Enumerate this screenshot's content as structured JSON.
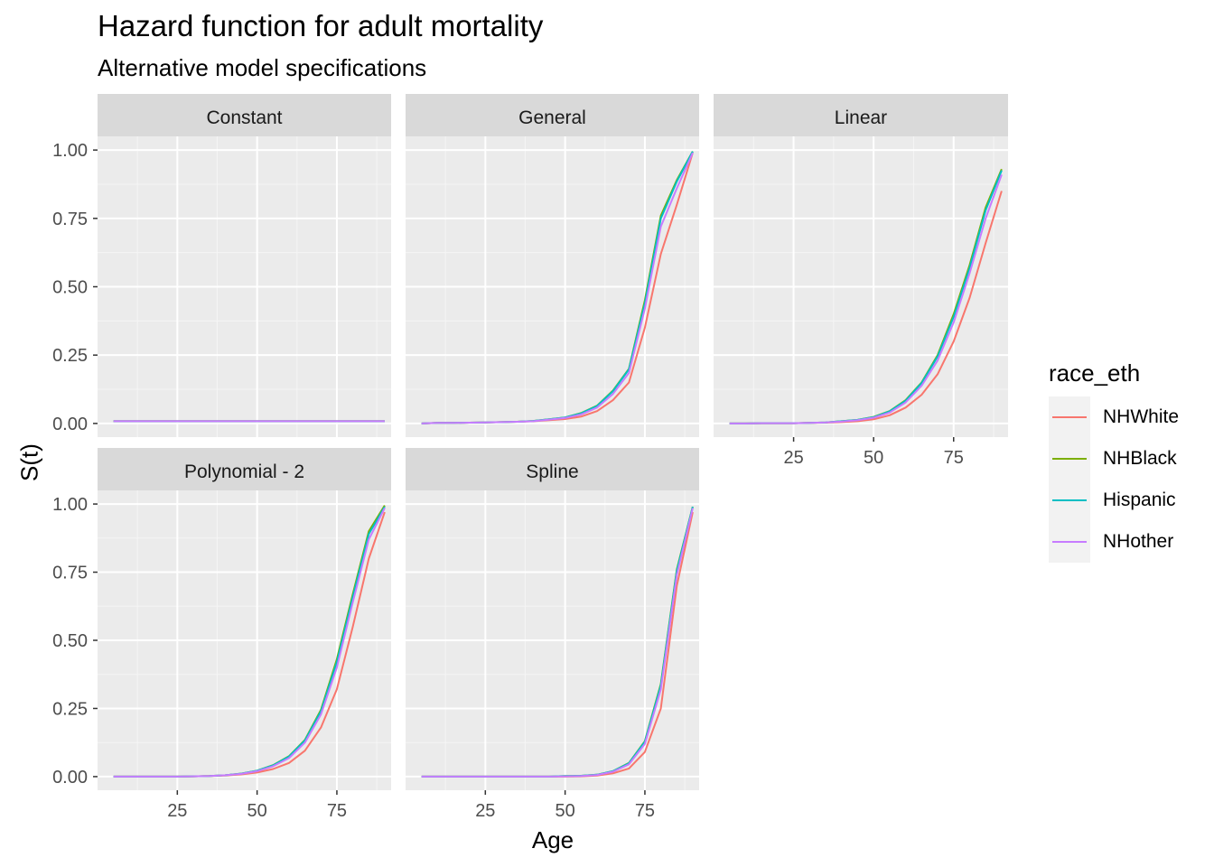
{
  "chart_data": {
    "type": "line",
    "title": "Hazard function for adult mortality",
    "subtitle": "Alternative model specifications",
    "xlabel": "Age",
    "ylabel": "S(t)",
    "xlim": [
      0,
      92
    ],
    "ylim": [
      -0.05,
      1.05
    ],
    "x_ticks": [
      25,
      50,
      75
    ],
    "x_tick_labels": [
      "25",
      "50",
      "75"
    ],
    "y_ticks": [
      0,
      0.25,
      0.5,
      0.75,
      1.0
    ],
    "y_tick_labels": [
      "0.00",
      "0.25",
      "0.50",
      "0.75",
      "1.00"
    ],
    "legend": {
      "title": "race_eth",
      "placement": "right",
      "entries": [
        {
          "name": "NHWhite",
          "color": "#F8766D"
        },
        {
          "name": "NHBlack",
          "color": "#7CAE00"
        },
        {
          "name": "Hispanic",
          "color": "#00BFC4"
        },
        {
          "name": "NHother",
          "color": "#C77CFF"
        }
      ]
    },
    "x": [
      5,
      10,
      15,
      20,
      25,
      30,
      35,
      40,
      45,
      50,
      55,
      60,
      65,
      70,
      75,
      80,
      85,
      90
    ],
    "panels": [
      {
        "name": "Constant",
        "series": [
          {
            "name": "NHWhite",
            "values": [
              0.008,
              0.008,
              0.008,
              0.008,
              0.008,
              0.008,
              0.008,
              0.008,
              0.008,
              0.008,
              0.008,
              0.008,
              0.008,
              0.008,
              0.008,
              0.008,
              0.008,
              0.008
            ]
          },
          {
            "name": "NHBlack",
            "values": [
              0.008,
              0.008,
              0.008,
              0.008,
              0.008,
              0.008,
              0.008,
              0.008,
              0.008,
              0.008,
              0.008,
              0.008,
              0.008,
              0.008,
              0.008,
              0.008,
              0.008,
              0.008
            ]
          },
          {
            "name": "Hispanic",
            "values": [
              0.008,
              0.008,
              0.008,
              0.008,
              0.008,
              0.008,
              0.008,
              0.008,
              0.008,
              0.008,
              0.008,
              0.008,
              0.008,
              0.008,
              0.008,
              0.008,
              0.008,
              0.008
            ]
          },
          {
            "name": "NHother",
            "values": [
              0.008,
              0.008,
              0.008,
              0.008,
              0.008,
              0.008,
              0.008,
              0.008,
              0.008,
              0.008,
              0.008,
              0.008,
              0.008,
              0.008,
              0.008,
              0.008,
              0.008,
              0.008
            ]
          }
        ]
      },
      {
        "name": "General",
        "series": [
          {
            "name": "NHWhite",
            "values": [
              0.0,
              0.002,
              0.002,
              0.003,
              0.004,
              0.005,
              0.006,
              0.008,
              0.012,
              0.016,
              0.025,
              0.045,
              0.085,
              0.15,
              0.35,
              0.62,
              0.8,
              0.99
            ]
          },
          {
            "name": "NHBlack",
            "values": [
              0.0,
              0.002,
              0.002,
              0.003,
              0.004,
              0.005,
              0.006,
              0.009,
              0.015,
              0.022,
              0.038,
              0.065,
              0.12,
              0.2,
              0.45,
              0.76,
              0.89,
              0.995
            ]
          },
          {
            "name": "Hispanic",
            "values": [
              0.0,
              0.002,
              0.002,
              0.003,
              0.004,
              0.005,
              0.006,
              0.009,
              0.015,
              0.022,
              0.037,
              0.064,
              0.118,
              0.198,
              0.44,
              0.75,
              0.885,
              0.995
            ]
          },
          {
            "name": "NHother",
            "values": [
              0.0,
              0.002,
              0.002,
              0.003,
              0.004,
              0.005,
              0.006,
              0.008,
              0.014,
              0.02,
              0.033,
              0.058,
              0.108,
              0.185,
              0.42,
              0.72,
              0.86,
              0.99
            ]
          }
        ]
      },
      {
        "name": "Linear",
        "series": [
          {
            "name": "NHWhite",
            "values": [
              0.0,
              0.0,
              0.001,
              0.001,
              0.001,
              0.002,
              0.003,
              0.005,
              0.008,
              0.015,
              0.03,
              0.058,
              0.105,
              0.18,
              0.3,
              0.46,
              0.66,
              0.85
            ]
          },
          {
            "name": "NHBlack",
            "values": [
              0.0,
              0.0,
              0.001,
              0.001,
              0.001,
              0.002,
              0.004,
              0.008,
              0.013,
              0.024,
              0.045,
              0.085,
              0.15,
              0.25,
              0.4,
              0.58,
              0.79,
              0.93
            ]
          },
          {
            "name": "Hispanic",
            "values": [
              0.0,
              0.0,
              0.001,
              0.001,
              0.001,
              0.002,
              0.004,
              0.008,
              0.013,
              0.023,
              0.044,
              0.083,
              0.148,
              0.245,
              0.39,
              0.57,
              0.78,
              0.925
            ]
          },
          {
            "name": "NHother",
            "values": [
              0.0,
              0.0,
              0.001,
              0.001,
              0.001,
              0.002,
              0.004,
              0.007,
              0.012,
              0.021,
              0.04,
              0.077,
              0.138,
              0.23,
              0.37,
              0.55,
              0.75,
              0.91
            ]
          }
        ]
      },
      {
        "name": "Polynomial - 2",
        "series": [
          {
            "name": "NHWhite",
            "values": [
              0.0,
              0.0,
              0.0,
              0.0,
              0.0,
              0.001,
              0.002,
              0.004,
              0.008,
              0.015,
              0.028,
              0.05,
              0.095,
              0.18,
              0.32,
              0.55,
              0.8,
              0.97
            ]
          },
          {
            "name": "NHBlack",
            "values": [
              0.0,
              0.0,
              0.0,
              0.0,
              0.0,
              0.001,
              0.002,
              0.005,
              0.011,
              0.022,
              0.042,
              0.075,
              0.135,
              0.245,
              0.43,
              0.67,
              0.9,
              0.995
            ]
          },
          {
            "name": "Hispanic",
            "values": [
              0.0,
              0.0,
              0.0,
              0.0,
              0.0,
              0.001,
              0.002,
              0.005,
              0.011,
              0.022,
              0.041,
              0.074,
              0.133,
              0.24,
              0.42,
              0.66,
              0.89,
              0.99
            ]
          },
          {
            "name": "NHother",
            "values": [
              0.0,
              0.0,
              0.0,
              0.0,
              0.0,
              0.001,
              0.002,
              0.005,
              0.01,
              0.02,
              0.038,
              0.068,
              0.125,
              0.228,
              0.4,
              0.64,
              0.87,
              0.985
            ]
          }
        ]
      },
      {
        "name": "Spline",
        "series": [
          {
            "name": "NHWhite",
            "values": [
              0.0,
              0.0,
              0.0,
              0.0,
              0.0,
              0.0,
              0.0,
              0.0,
              0.0,
              0.0,
              0.001,
              0.004,
              0.012,
              0.03,
              0.09,
              0.25,
              0.7,
              0.97
            ]
          },
          {
            "name": "NHBlack",
            "values": [
              0.0,
              0.0,
              0.0,
              0.0,
              0.0,
              0.0,
              0.0,
              0.0,
              0.0,
              0.002,
              0.003,
              0.007,
              0.02,
              0.05,
              0.13,
              0.34,
              0.76,
              0.99
            ]
          },
          {
            "name": "Hispanic",
            "values": [
              0.0,
              0.0,
              0.0,
              0.0,
              0.0,
              0.0,
              0.0,
              0.0,
              0.0,
              0.002,
              0.003,
              0.007,
              0.02,
              0.049,
              0.128,
              0.335,
              0.755,
              0.99
            ]
          },
          {
            "name": "NHother",
            "values": [
              0.0,
              0.0,
              0.0,
              0.0,
              0.0,
              0.0,
              0.0,
              0.0,
              0.0,
              0.001,
              0.002,
              0.006,
              0.018,
              0.045,
              0.12,
              0.32,
              0.74,
              0.985
            ]
          }
        ]
      }
    ]
  }
}
